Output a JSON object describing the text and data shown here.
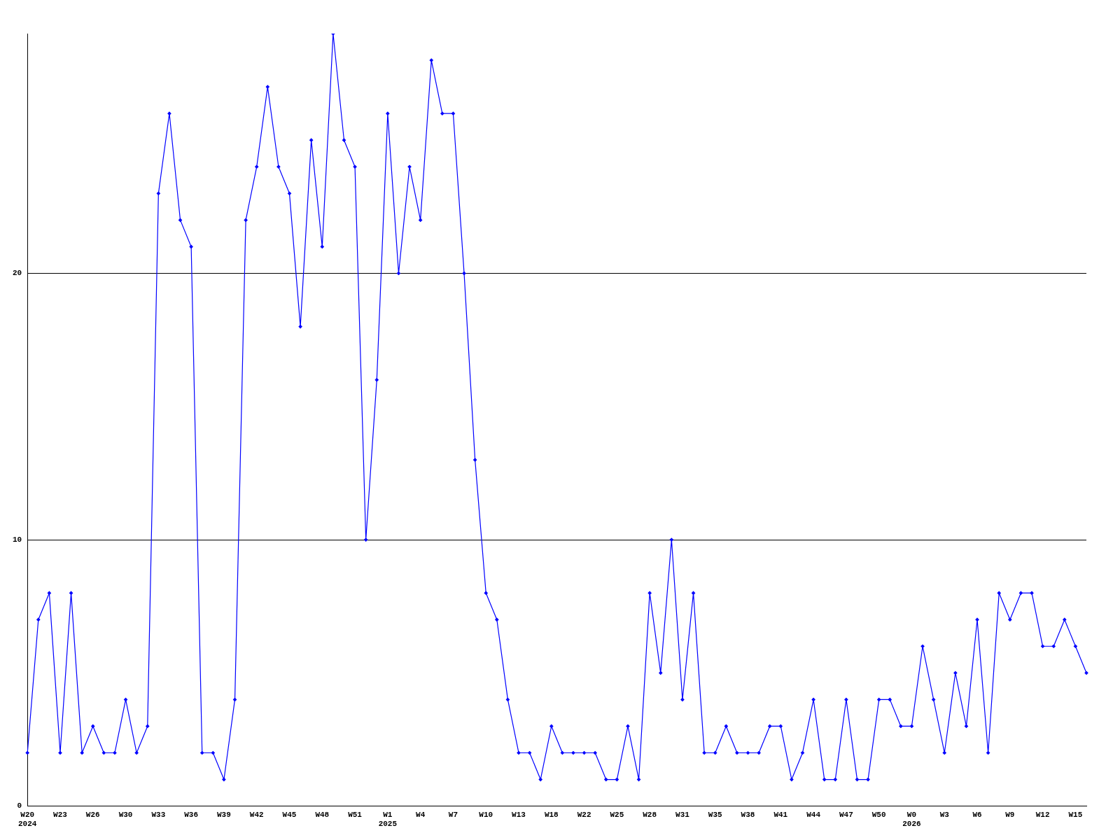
{
  "chart_data": {
    "type": "line",
    "categories": [
      "W20\n2024",
      null,
      null,
      "W23",
      null,
      null,
      "W26",
      null,
      null,
      "W30",
      null,
      null,
      "W33",
      null,
      null,
      "W36",
      null,
      null,
      "W39",
      null,
      null,
      "W42",
      null,
      null,
      "W45",
      null,
      null,
      "W48",
      null,
      null,
      "W51",
      null,
      null,
      "W1\n2025",
      null,
      null,
      "W4",
      null,
      null,
      "W7",
      null,
      null,
      "W10",
      null,
      null,
      "W13",
      null,
      null,
      "W18",
      null,
      null,
      "W22",
      null,
      null,
      "W25",
      null,
      null,
      "W28",
      null,
      null,
      "W31",
      null,
      null,
      "W35",
      null,
      null,
      "W38",
      null,
      null,
      "W41",
      null,
      null,
      "W44",
      null,
      null,
      "W47",
      null,
      null,
      "W50",
      null,
      null,
      "W0\n2026",
      null,
      null,
      "W3",
      null,
      null,
      "W6",
      null,
      null,
      "W9",
      null,
      null,
      "W12",
      null,
      null,
      "W15",
      null
    ],
    "series": [
      {
        "color": "#0000ff",
        "values": [
          2,
          7,
          8,
          2,
          8,
          2,
          3,
          2,
          2,
          4,
          2,
          3,
          23,
          26,
          22,
          21,
          2,
          2,
          1,
          4,
          22,
          24,
          27,
          24,
          23,
          18,
          25,
          21,
          29,
          25,
          24,
          10,
          16,
          26,
          20,
          24,
          22,
          28,
          26,
          26,
          20,
          13,
          8,
          7,
          4,
          2,
          2,
          1,
          3,
          2,
          2,
          2,
          2,
          1,
          1,
          3,
          1,
          8,
          5,
          10,
          4,
          8,
          2,
          2,
          3,
          2,
          2,
          2,
          3,
          3,
          1,
          2,
          4,
          1,
          1,
          4,
          1,
          1,
          4,
          4,
          3,
          3,
          6,
          4,
          2,
          5,
          3,
          7,
          2,
          8,
          7,
          8,
          8,
          6,
          6,
          7,
          6,
          5
        ]
      }
    ],
    "ylim": [
      0,
      29
    ],
    "yticks": [
      0,
      10,
      20
    ],
    "grid": "y",
    "marker": "diamond",
    "line_style": "solid",
    "legend": false
  }
}
